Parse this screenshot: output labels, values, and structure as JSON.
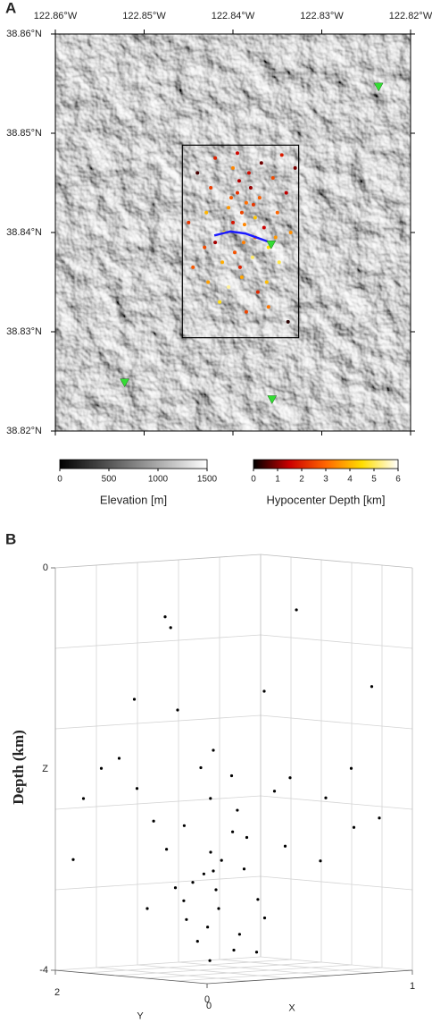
{
  "chart_data": [
    {
      "type": "map",
      "panel": "A",
      "xlim": [
        -122.86,
        -122.82
      ],
      "ylim": [
        38.82,
        38.86
      ],
      "xticks": [
        {
          "value": -122.86,
          "label": "122.86°W"
        },
        {
          "value": -122.85,
          "label": "122.85°W"
        },
        {
          "value": -122.84,
          "label": "122.84°W"
        },
        {
          "value": -122.83,
          "label": "122.83°W"
        },
        {
          "value": -122.82,
          "label": "122.82°W"
        }
      ],
      "yticks": [
        {
          "value": 38.82,
          "label": "38.82°N"
        },
        {
          "value": 38.83,
          "label": "38.83°N"
        },
        {
          "value": 38.84,
          "label": "38.84°N"
        },
        {
          "value": 38.85,
          "label": "38.85°N"
        },
        {
          "value": 38.86,
          "label": "38.86°N"
        }
      ],
      "hypocenters": {
        "lon": [
          -122.839,
          -122.8385,
          -122.84,
          -122.8375,
          -122.8395,
          -122.838,
          -122.8405,
          -122.837,
          -122.841,
          -122.8365,
          -122.8388,
          -122.8398,
          -122.8378,
          -122.8412,
          -122.8392,
          -122.836,
          -122.842,
          -122.835,
          -122.8425,
          -122.8382,
          -122.8368,
          -122.84,
          -122.8355,
          -122.843,
          -122.844,
          -122.8345,
          -122.839,
          -122.8405,
          -122.8372,
          -122.8415,
          -122.836,
          -122.8338,
          -122.8445,
          -122.8335,
          -122.834,
          -122.845,
          -122.833,
          -122.842,
          -122.8395,
          -122.8362,
          -122.8428,
          -122.8385,
          -122.8348,
          -122.8375,
          -122.8402,
          -122.8387,
          -122.8377,
          -122.8393,
          -122.8352,
          -122.8432
        ],
        "lat": [
          38.842,
          38.843,
          38.841,
          38.8415,
          38.844,
          38.8445,
          38.8425,
          38.8435,
          38.84,
          38.8405,
          38.839,
          38.838,
          38.8375,
          38.837,
          38.8365,
          38.8385,
          38.839,
          38.842,
          38.8445,
          38.846,
          38.847,
          38.8465,
          38.8455,
          38.842,
          38.846,
          38.8478,
          38.8355,
          38.8345,
          38.834,
          38.833,
          38.8325,
          38.831,
          38.8365,
          38.84,
          38.844,
          38.841,
          38.8465,
          38.8475,
          38.848,
          38.835,
          38.835,
          38.832,
          38.837,
          38.8395,
          38.8435,
          38.8408,
          38.8428,
          38.8452,
          38.8395,
          38.8385
        ],
        "depth": [
          2.5,
          3.1,
          1.8,
          4.2,
          2.2,
          1.1,
          3.6,
          2.9,
          4.8,
          1.5,
          3.3,
          2.7,
          5.1,
          3.9,
          2.0,
          4.5,
          1.2,
          3.0,
          2.4,
          1.7,
          0.8,
          3.4,
          2.6,
          4.0,
          0.5,
          1.9,
          3.8,
          5.4,
          2.1,
          4.6,
          3.2,
          0.3,
          2.8,
          3.5,
          1.4,
          2.3,
          0.9,
          2.0,
          1.6,
          4.1,
          3.7,
          2.5,
          4.9,
          3.0,
          2.8,
          3.4,
          2.3,
          1.3,
          3.6,
          2.6
        ]
      },
      "stations": {
        "lon": [
          -122.8236,
          -122.8357,
          -122.8522,
          -122.8356
        ],
        "lat": [
          38.8547,
          38.8388,
          38.8249,
          38.8232
        ],
        "color": "#33dd33"
      },
      "fault": {
        "lon": [
          -122.8421,
          -122.8403,
          -122.8386,
          -122.8361
        ],
        "lat": [
          38.8397,
          38.8401,
          38.8399,
          38.8391
        ],
        "color": "#1a1aff"
      },
      "box": {
        "lon": [
          -122.8457,
          -122.8326
        ],
        "lat": [
          38.8294,
          38.8488
        ]
      },
      "colorbars": [
        {
          "label": "Elevation [m]",
          "lim": [
            0,
            1500
          ],
          "ticks": [
            0,
            500,
            1000,
            1500
          ],
          "colormap": [
            "#000000",
            "#ffffff"
          ]
        },
        {
          "label": "Hypocenter Depth [km]",
          "lim": [
            0,
            6
          ],
          "ticks": [
            0,
            1,
            2,
            3,
            4,
            5,
            6
          ],
          "colormap": [
            "#000000",
            "#cc0000",
            "#ff6600",
            "#ffdd00",
            "#ffffff"
          ]
        }
      ]
    },
    {
      "type": "scatter3d",
      "panel": "B",
      "depth_label": "Depth (km)",
      "xlabel": "X",
      "ylabel": "Y",
      "zlabel": "Z",
      "xlim": [
        0,
        1
      ],
      "ylim": [
        0,
        2
      ],
      "zlim": [
        -4,
        0
      ],
      "xticks": [
        0,
        1
      ],
      "yticks": [
        0,
        2
      ],
      "zticks": [
        -4,
        0
      ],
      "color": "#000000",
      "x": [
        0.4,
        0.45,
        0.35,
        0.5,
        0.3,
        0.42,
        0.55,
        0.38,
        0.48,
        0.33,
        0.52,
        0.44,
        0.36,
        0.6,
        0.28,
        0.46,
        0.4,
        0.58,
        0.32,
        0.5,
        0.25,
        0.7,
        0.8,
        0.9,
        0.75,
        0.15,
        0.1,
        0.2,
        0.85,
        0.95,
        0.3,
        0.35,
        0.34,
        0.62,
        0.5,
        0.95,
        0.2,
        0.4,
        0.45,
        0.6,
        0.42,
        0.5,
        0.3,
        0.65,
        0.55,
        0.05,
        0.7,
        0.22,
        0.48,
        0.38
      ],
      "y": [
        1.0,
        1.1,
        0.9,
        1.2,
        1.0,
        0.8,
        1.0,
        1.3,
        0.9,
        1.2,
        1.4,
        1.0,
        1.1,
        1.1,
        0.8,
        1.2,
        1.5,
        0.9,
        1.4,
        1.0,
        1.6,
        0.8,
        0.6,
        0.5,
        1.0,
        1.8,
        1.9,
        1.7,
        0.4,
        0.3,
        1.2,
        1.5,
        1.4,
        0.5,
        0.6,
        0.4,
        1.5,
        1.0,
        1.3,
        1.3,
        1.1,
        0.7,
        1.6,
        1.0,
        0.6,
        1.9,
        0.4,
        1.3,
        1.6,
        0.6
      ],
      "z": [
        -3.0,
        -3.2,
        -2.8,
        -3.4,
        -3.1,
        -2.6,
        -3.0,
        -3.5,
        -2.4,
        -3.3,
        -3.6,
        -2.9,
        -3.7,
        -2.7,
        -3.0,
        -2.3,
        -3.2,
        -3.3,
        -2.8,
        -3.8,
        -2.2,
        -2.1,
        -2.3,
        -2.6,
        -2.8,
        -2.0,
        -2.3,
        -1.9,
        -2.0,
        -2.5,
        -1.4,
        -0.5,
        -0.6,
        -0.4,
        -1.2,
        -1.2,
        -1.3,
        -1.8,
        -2.0,
        -2.1,
        -3.9,
        -3.8,
        -3.4,
        -3.5,
        -2.2,
        -2.9,
        -2.9,
        -2.5,
        -2.6,
        -3.6
      ]
    }
  ]
}
